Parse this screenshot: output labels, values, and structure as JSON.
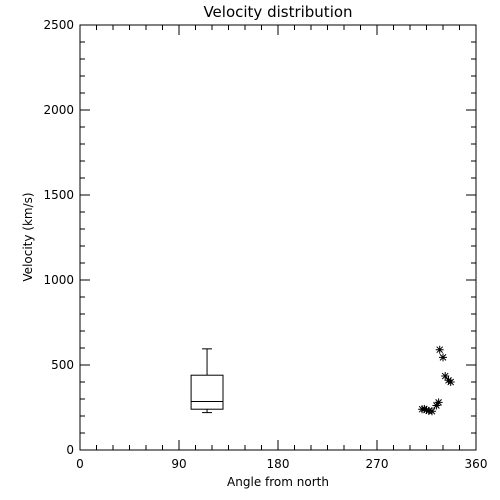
{
  "chart_data": {
    "type": "scatter",
    "title": "Velocity distribution",
    "xlabel": "Angle from north",
    "ylabel": "Velocity (km/s)",
    "xlim": [
      0,
      360
    ],
    "ylim": [
      0,
      2500
    ],
    "xticks": [
      0,
      90,
      180,
      270,
      360
    ],
    "xtick_labels": [
      "0",
      "90",
      "180",
      "270",
      "360"
    ],
    "yticks": [
      0,
      500,
      1000,
      1500,
      2000,
      2500
    ],
    "ytick_labels": [
      "0",
      "500",
      "1000",
      "1500",
      "2000",
      "2500"
    ],
    "grid": false,
    "legend": "none",
    "boxplot": {
      "x_left": 101,
      "x_right": 130,
      "whisker_min": 220,
      "q1": 240,
      "median": 285,
      "q3": 440,
      "whisker_max": 595
    },
    "points": [
      {
        "x": 311,
        "y": 240
      },
      {
        "x": 313,
        "y": 242
      },
      {
        "x": 315,
        "y": 235
      },
      {
        "x": 317,
        "y": 230
      },
      {
        "x": 320,
        "y": 228
      },
      {
        "x": 324,
        "y": 262
      },
      {
        "x": 326,
        "y": 280
      },
      {
        "x": 327,
        "y": 590
      },
      {
        "x": 330,
        "y": 545
      },
      {
        "x": 332,
        "y": 435
      },
      {
        "x": 335,
        "y": 410
      },
      {
        "x": 337,
        "y": 400
      }
    ]
  }
}
